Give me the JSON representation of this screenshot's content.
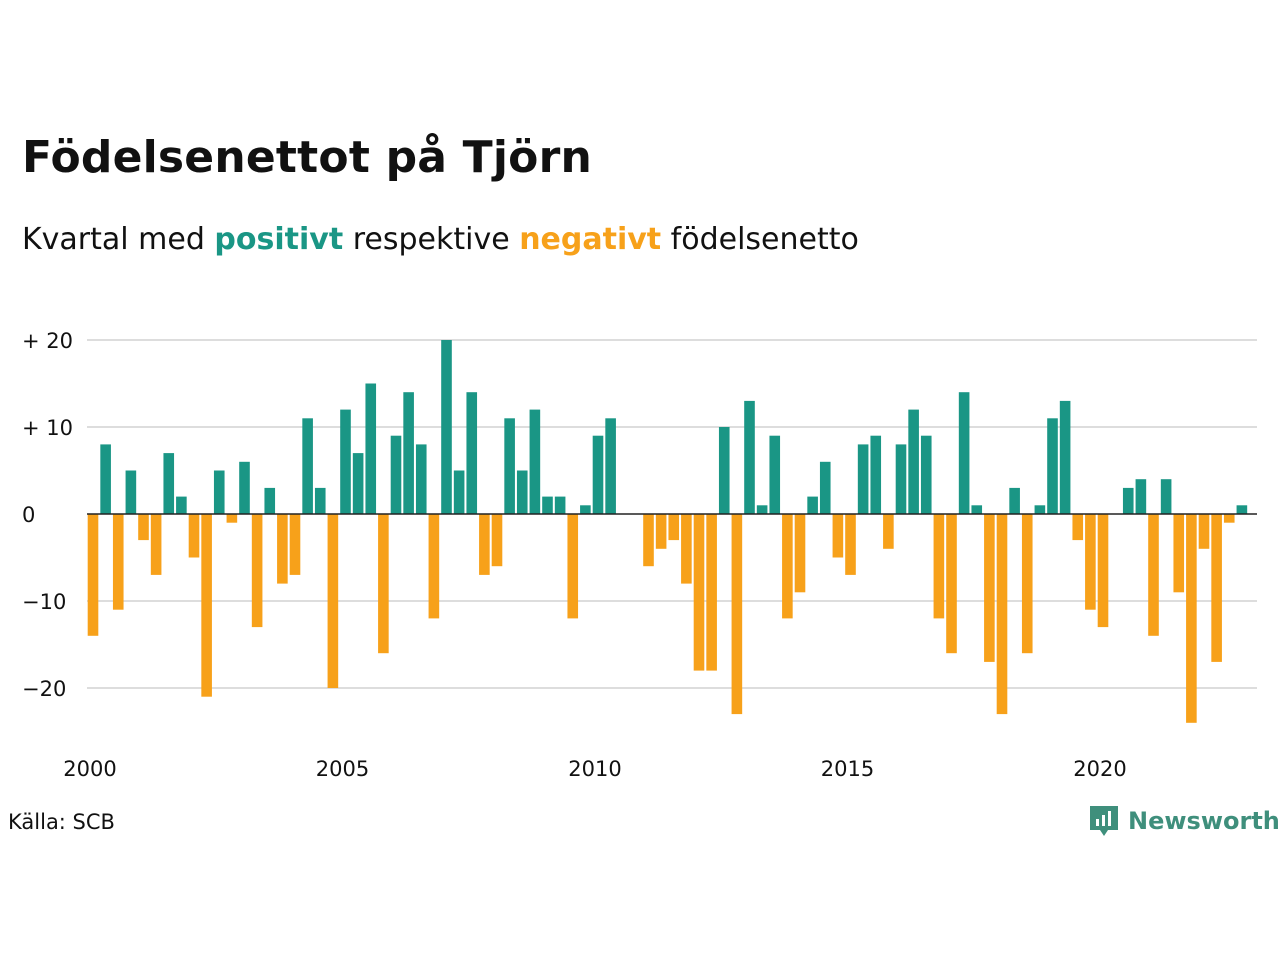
{
  "header": {
    "title": "Födelsenettot på Tjörn",
    "subtitle_pre": "Kvartal med ",
    "subtitle_positive": "positivt",
    "subtitle_mid": " respektive ",
    "subtitle_negative": "negativt",
    "subtitle_post": " födelsenetto"
  },
  "footer": {
    "source": "Källa: SCB",
    "brand": "Newsworthy",
    "brand_icon": "newsworthy-logo-icon"
  },
  "colors": {
    "positive": "#1a9685",
    "negative": "#f7a11a",
    "grid": "#dddddd",
    "baseline": "#222222"
  },
  "chart_data": {
    "type": "bar",
    "title": "Födelsenettot på Tjörn",
    "xlabel": "",
    "ylabel": "",
    "ylim": [
      -25,
      20
    ],
    "grid": true,
    "y_ticks": [
      {
        "value": 20,
        "label": "+ 20"
      },
      {
        "value": 10,
        "label": "+ 10"
      },
      {
        "value": 0,
        "label": "0"
      },
      {
        "value": -10,
        "label": "−10"
      },
      {
        "value": -20,
        "label": "−20"
      }
    ],
    "x_ticks": [
      {
        "value": 2000,
        "label": "2000"
      },
      {
        "value": 2005,
        "label": "2005"
      },
      {
        "value": 2010,
        "label": "2010"
      },
      {
        "value": 2015,
        "label": "2015"
      },
      {
        "value": 2020,
        "label": "2020"
      }
    ],
    "series": [
      {
        "start_year": 2000,
        "periods_per_year": 4,
        "values": [
          -14,
          8,
          -11,
          5,
          -3,
          -7,
          7,
          2,
          -5,
          -21,
          5,
          -1,
          6,
          -13,
          3,
          -8,
          -7,
          11,
          3,
          -20,
          12,
          7,
          15,
          -16,
          9,
          14,
          8,
          -12,
          20,
          5,
          14,
          -7,
          -6,
          11,
          5,
          12,
          2,
          2,
          -12,
          1,
          9,
          11,
          0,
          0,
          -6,
          -4,
          -3,
          -8,
          -18,
          -18,
          10,
          -23,
          13,
          1,
          9,
          -12,
          -9,
          2,
          6,
          -5,
          -7,
          8,
          9,
          -4,
          8,
          12,
          9,
          -12,
          -16,
          14,
          1,
          -17,
          -23,
          3,
          -16,
          1,
          11,
          13,
          -3,
          -11,
          -13,
          0,
          3,
          4,
          -14,
          4,
          -9,
          -24,
          -4,
          -17,
          -1,
          1
        ]
      }
    ]
  }
}
